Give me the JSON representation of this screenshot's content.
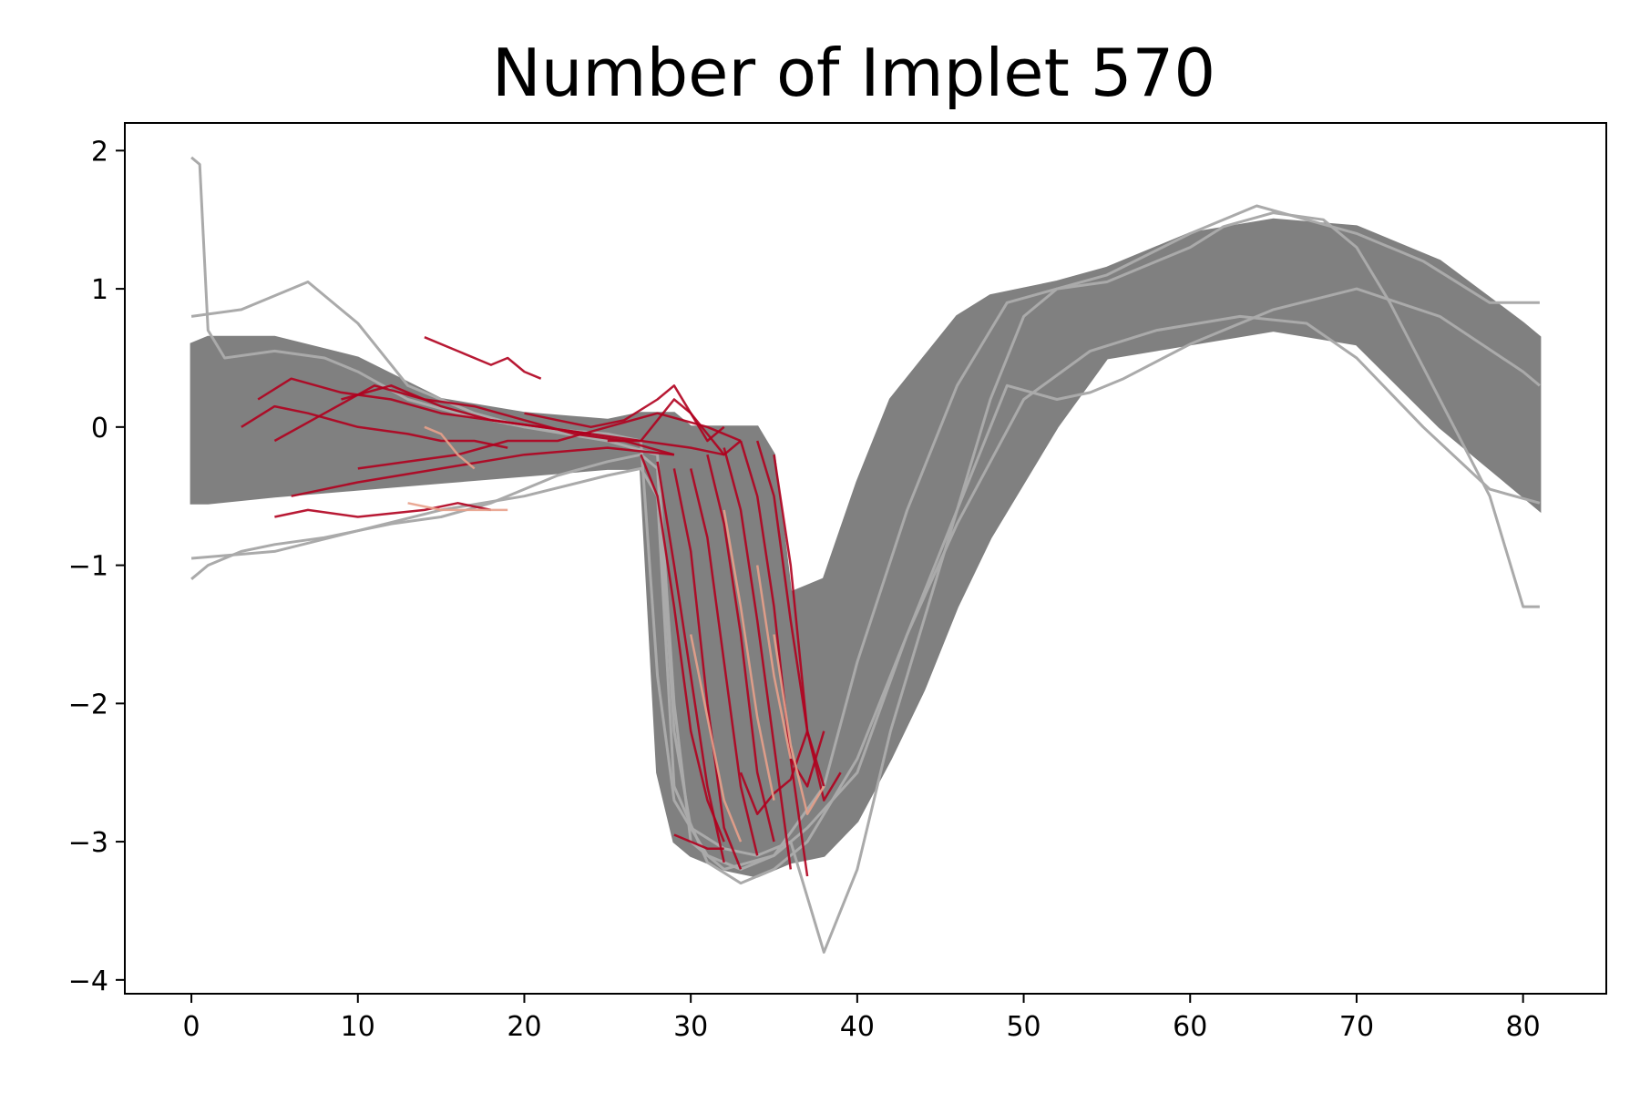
{
  "chart_data": {
    "type": "line",
    "title": "Number of Implet 570",
    "xlabel": "",
    "ylabel": "",
    "xlim": [
      -4,
      85
    ],
    "ylim": [
      -4.1,
      2.2
    ],
    "x_ticks": [
      0,
      10,
      20,
      30,
      40,
      50,
      60,
      70,
      80
    ],
    "x_tick_labels": [
      "0",
      "10",
      "20",
      "30",
      "40",
      "50",
      "60",
      "70",
      "80"
    ],
    "y_ticks": [
      2,
      1,
      0,
      -1,
      -2,
      -3,
      -4
    ],
    "y_tick_labels": [
      "2",
      "1",
      "0",
      "−1",
      "−2",
      "−3",
      "−4"
    ],
    "grid": false,
    "legend": "none",
    "colors": {
      "background_series": "#808080",
      "outlier_series": "#aaaaaa",
      "implet_main": "#b0001e",
      "implet_light": "#e8a08a"
    },
    "background_band": {
      "description_x": [
        0,
        1,
        5,
        10,
        15,
        20,
        25,
        27,
        28,
        29,
        30,
        32,
        34,
        35,
        36,
        38,
        40,
        42,
        44,
        46,
        48,
        50,
        52,
        55,
        60,
        65,
        70,
        75,
        80,
        81
      ],
      "upper": [
        0.6,
        0.65,
        0.65,
        0.5,
        0.2,
        0.1,
        0.05,
        0.1,
        0.1,
        0.1,
        0.0,
        0.0,
        0.0,
        -0.2,
        -1.2,
        -1.1,
        -0.4,
        0.2,
        0.5,
        0.8,
        0.95,
        1.0,
        1.05,
        1.15,
        1.4,
        1.5,
        1.45,
        1.2,
        0.75,
        0.65
      ],
      "lower": [
        -0.55,
        -0.55,
        -0.5,
        -0.45,
        -0.4,
        -0.35,
        -0.3,
        -0.3,
        -2.5,
        -3.0,
        -3.1,
        -3.2,
        -3.25,
        -3.2,
        -3.15,
        -3.1,
        -2.85,
        -2.4,
        -1.9,
        -1.3,
        -0.8,
        -0.4,
        0.0,
        0.5,
        0.6,
        0.7,
        0.6,
        0.0,
        -0.5,
        -0.6
      ]
    },
    "series": [
      {
        "x": [
          0,
          1,
          2,
          3,
          5,
          8,
          10,
          12,
          15,
          18,
          20,
          22,
          25,
          27,
          28,
          29,
          30,
          32,
          34,
          36,
          38,
          40,
          42,
          44,
          46,
          48,
          50,
          52,
          55,
          58,
          60,
          62,
          65,
          68,
          70,
          72,
          75,
          78,
          80,
          81
        ],
        "values": [
          -1.1,
          -1.0,
          -0.95,
          -0.9,
          -0.85,
          -0.8,
          -0.75,
          -0.7,
          -0.65,
          -0.55,
          -0.45,
          -0.35,
          -0.25,
          -0.2,
          -0.3,
          -2.2,
          -2.9,
          -3.05,
          -3.1,
          -3.0,
          -3.8,
          -3.2,
          -2.2,
          -1.4,
          -0.6,
          0.2,
          0.8,
          1.0,
          1.05,
          1.2,
          1.3,
          1.45,
          1.55,
          1.5,
          1.3,
          0.9,
          0.2,
          -0.5,
          -1.3,
          -1.3
        ]
      },
      {
        "x": [
          0,
          0.5,
          1,
          2,
          5,
          8,
          10,
          13,
          16,
          20,
          25,
          27,
          28,
          29,
          31,
          33,
          35,
          37,
          40,
          43,
          46,
          49,
          52,
          54,
          56,
          60,
          65,
          70,
          75,
          80,
          81
        ],
        "values": [
          1.95,
          1.9,
          0.7,
          0.5,
          0.55,
          0.5,
          0.4,
          0.2,
          0.1,
          0.0,
          -0.05,
          -0.1,
          -1.8,
          -2.7,
          -3.1,
          -3.2,
          -3.1,
          -2.9,
          -2.5,
          -1.5,
          -0.6,
          0.3,
          0.2,
          0.25,
          0.35,
          0.6,
          0.85,
          1.0,
          0.8,
          0.4,
          0.3
        ]
      },
      {
        "x": [
          0,
          3,
          7,
          10,
          13,
          17,
          20,
          25,
          28,
          29,
          30,
          32,
          35,
          38,
          40,
          43,
          46,
          49,
          52,
          55,
          60,
          64,
          67,
          70,
          74,
          78,
          81
        ],
        "values": [
          0.8,
          0.85,
          1.05,
          0.75,
          0.3,
          0.1,
          0.0,
          -0.1,
          -0.2,
          -2.0,
          -3.0,
          -3.2,
          -3.1,
          -2.6,
          -1.7,
          -0.6,
          0.3,
          0.9,
          1.0,
          1.1,
          1.4,
          1.6,
          1.5,
          1.4,
          1.2,
          0.9,
          0.9
        ]
      },
      {
        "x": [
          0,
          5,
          10,
          15,
          20,
          25,
          27,
          28,
          29,
          31,
          33,
          35,
          37,
          40,
          43,
          46,
          50,
          54,
          58,
          63,
          67,
          70,
          74,
          78,
          81
        ],
        "values": [
          -0.95,
          -0.9,
          -0.75,
          -0.6,
          -0.5,
          -0.35,
          -0.3,
          -0.5,
          -2.6,
          -3.15,
          -3.3,
          -3.2,
          -3.0,
          -2.4,
          -1.5,
          -0.7,
          0.2,
          0.55,
          0.7,
          0.8,
          0.75,
          0.5,
          0.0,
          -0.45,
          -0.55
        ]
      }
    ],
    "implet_segments": [
      {
        "x": [
          3,
          5,
          7,
          10,
          13,
          15,
          17,
          19
        ],
        "values": [
          0.0,
          0.15,
          0.1,
          0.0,
          -0.05,
          -0.1,
          -0.1,
          -0.15
        ]
      },
      {
        "x": [
          4,
          6,
          9,
          12,
          15,
          18,
          21,
          24
        ],
        "values": [
          0.2,
          0.35,
          0.25,
          0.2,
          0.1,
          0.05,
          0.0,
          -0.05
        ]
      },
      {
        "x": [
          5,
          8,
          11,
          14,
          17,
          20,
          23,
          26,
          29
        ],
        "values": [
          -0.1,
          0.1,
          0.3,
          0.2,
          0.15,
          0.05,
          -0.05,
          -0.1,
          -0.2
        ]
      },
      {
        "x": [
          5,
          7,
          10,
          14,
          16,
          18
        ],
        "values": [
          -0.65,
          -0.6,
          -0.65,
          -0.6,
          -0.55,
          -0.6
        ]
      },
      {
        "x": [
          6,
          10,
          15,
          20,
          25,
          29
        ],
        "values": [
          -0.5,
          -0.4,
          -0.3,
          -0.2,
          -0.15,
          -0.2
        ]
      },
      {
        "x": [
          14,
          16,
          18,
          19,
          20,
          21
        ],
        "values": [
          0.65,
          0.55,
          0.45,
          0.5,
          0.4,
          0.35
        ]
      },
      {
        "x": [
          9,
          12,
          15,
          18,
          21,
          24,
          27,
          30,
          32
        ],
        "values": [
          0.2,
          0.3,
          0.15,
          0.05,
          0.0,
          -0.05,
          -0.1,
          -0.15,
          -0.2
        ]
      },
      {
        "x": [
          10,
          13,
          16,
          19,
          22,
          25,
          28,
          31,
          33
        ],
        "values": [
          -0.3,
          -0.25,
          -0.2,
          -0.1,
          -0.1,
          0.0,
          0.1,
          0.0,
          -0.1
        ]
      },
      {
        "x": [
          20,
          22,
          24,
          26,
          28,
          29,
          30,
          31,
          32
        ],
        "values": [
          0.1,
          0.05,
          0.0,
          0.05,
          0.2,
          0.3,
          0.1,
          -0.1,
          0.0
        ]
      },
      {
        "x": [
          25,
          27,
          28,
          29,
          30,
          31,
          32,
          33
        ],
        "values": [
          -0.1,
          -0.1,
          0.05,
          0.2,
          0.1,
          -0.05,
          -0.2,
          -0.1
        ]
      },
      {
        "x": [
          27,
          28,
          29,
          30,
          31,
          32
        ],
        "values": [
          -0.2,
          -0.5,
          -1.3,
          -2.2,
          -2.7,
          -3.0
        ]
      },
      {
        "x": [
          28,
          29,
          30,
          31,
          32
        ],
        "values": [
          -0.25,
          -1.0,
          -1.8,
          -2.6,
          -3.15
        ]
      },
      {
        "x": [
          29,
          30,
          31,
          32,
          33
        ],
        "values": [
          -0.3,
          -0.9,
          -2.0,
          -2.9,
          -3.2
        ]
      },
      {
        "x": [
          30,
          31,
          32,
          33,
          34
        ],
        "values": [
          -0.3,
          -0.8,
          -1.7,
          -2.6,
          -3.1
        ]
      },
      {
        "x": [
          31,
          32,
          33,
          34,
          35
        ],
        "values": [
          -0.2,
          -0.7,
          -1.5,
          -2.5,
          -3.0
        ]
      },
      {
        "x": [
          32,
          33,
          34,
          35,
          36
        ],
        "values": [
          -0.15,
          -0.6,
          -1.4,
          -2.3,
          -3.2
        ]
      },
      {
        "x": [
          33,
          34,
          35,
          36,
          37
        ],
        "values": [
          -0.1,
          -0.5,
          -1.3,
          -2.4,
          -3.25
        ]
      },
      {
        "x": [
          34,
          35,
          36,
          37,
          38
        ],
        "values": [
          -0.1,
          -0.5,
          -1.4,
          -2.2,
          -2.6
        ]
      },
      {
        "x": [
          35,
          36,
          37,
          38,
          39
        ],
        "values": [
          -0.2,
          -1.0,
          -2.2,
          -2.7,
          -2.5
        ]
      },
      {
        "x": [
          36,
          37,
          38
        ],
        "values": [
          -2.4,
          -2.6,
          -2.2
        ]
      },
      {
        "x": [
          29,
          30,
          31,
          32
        ],
        "values": [
          -2.95,
          -3.0,
          -3.05,
          -3.05
        ]
      },
      {
        "x": [
          33,
          34,
          35,
          36,
          37
        ],
        "values": [
          -2.5,
          -2.8,
          -2.65,
          -2.55,
          -2.2
        ]
      }
    ],
    "implet_light_segments": [
      {
        "x": [
          14,
          15,
          16,
          17
        ],
        "values": [
          0.0,
          -0.05,
          -0.2,
          -0.3
        ]
      },
      {
        "x": [
          13,
          15,
          17,
          19
        ],
        "values": [
          -0.55,
          -0.6,
          -0.6,
          -0.6
        ]
      },
      {
        "x": [
          30,
          31,
          32,
          33
        ],
        "values": [
          -1.5,
          -2.1,
          -2.7,
          -3.0
        ]
      },
      {
        "x": [
          32,
          33,
          34,
          35
        ],
        "values": [
          -0.6,
          -1.3,
          -2.1,
          -2.7
        ]
      },
      {
        "x": [
          34,
          35,
          36
        ],
        "values": [
          -1.0,
          -1.8,
          -2.4
        ]
      },
      {
        "x": [
          35,
          36,
          37,
          38
        ],
        "values": [
          -1.5,
          -2.3,
          -2.8,
          -2.6
        ]
      }
    ]
  }
}
